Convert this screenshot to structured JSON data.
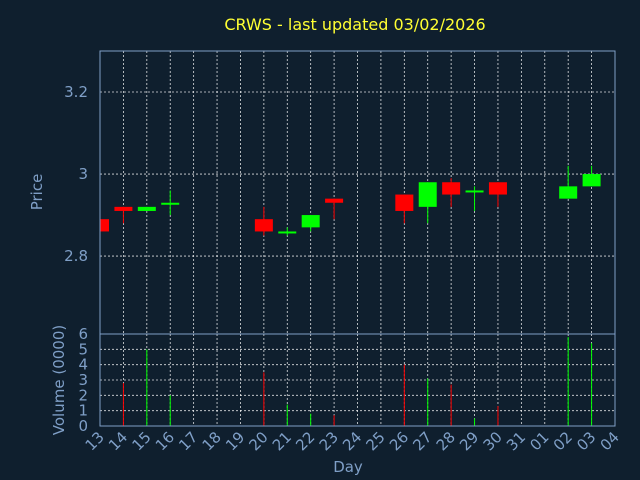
{
  "chart_data": {
    "type": "candlestick",
    "title": "CRWS - last updated 03/02/2026",
    "xlabel": "Day",
    "price_panel": {
      "ylabel": "Price",
      "ylim": [
        2.61,
        3.3
      ],
      "yticks": [
        2.8,
        3.0,
        3.2
      ],
      "ytick_labels": [
        "2.8",
        "3",
        "3.2"
      ]
    },
    "volume_panel": {
      "ylabel": "Volume (0000)",
      "ylim": [
        0,
        6
      ],
      "yticks": [
        0,
        1,
        2,
        3,
        4,
        5,
        6
      ],
      "ytick_labels": [
        "0",
        "1",
        "2",
        "3",
        "4",
        "5",
        "6"
      ]
    },
    "x_tick_labels": [
      "13",
      "14",
      "15",
      "16",
      "17",
      "18",
      "19",
      "20",
      "21",
      "22",
      "23",
      "24",
      "25",
      "26",
      "27",
      "28",
      "29",
      "30",
      "31",
      "01",
      "02",
      "03",
      "04"
    ],
    "grid": true,
    "up_color": "#00ff00",
    "down_color": "#ff0000",
    "candles": [
      {
        "x": 0,
        "open": 2.89,
        "close": 2.86,
        "high": 2.89,
        "low": 2.86,
        "volume": 0
      },
      {
        "x": 1,
        "open": 2.92,
        "close": 2.91,
        "high": 2.92,
        "low": 2.88,
        "volume": 2.8
      },
      {
        "x": 2,
        "open": 2.91,
        "close": 2.92,
        "high": 2.92,
        "low": 2.91,
        "volume": 5.0
      },
      {
        "x": 3,
        "open": 2.93,
        "close": 2.93,
        "high": 2.96,
        "low": 2.9,
        "volume": 2.0
      },
      {
        "x": 7,
        "open": 2.89,
        "close": 2.86,
        "high": 2.92,
        "low": 2.85,
        "volume": 3.5
      },
      {
        "x": 8,
        "open": 2.86,
        "close": 2.86,
        "high": 2.87,
        "low": 2.85,
        "volume": 1.4
      },
      {
        "x": 9,
        "open": 2.87,
        "close": 2.9,
        "high": 2.9,
        "low": 2.86,
        "volume": 0.8
      },
      {
        "x": 10,
        "open": 2.94,
        "close": 2.93,
        "high": 2.94,
        "low": 2.89,
        "volume": 0.7
      },
      {
        "x": 13,
        "open": 2.95,
        "close": 2.91,
        "high": 2.95,
        "low": 2.88,
        "volume": 4.0
      },
      {
        "x": 14,
        "open": 2.92,
        "close": 2.98,
        "high": 2.98,
        "low": 2.88,
        "volume": 3.1
      },
      {
        "x": 15,
        "open": 2.98,
        "close": 2.95,
        "high": 2.99,
        "low": 2.92,
        "volume": 2.7
      },
      {
        "x": 16,
        "open": 2.96,
        "close": 2.96,
        "high": 2.97,
        "low": 2.91,
        "volume": 0.5
      },
      {
        "x": 17,
        "open": 2.98,
        "close": 2.95,
        "high": 2.98,
        "low": 2.92,
        "volume": 1.3
      },
      {
        "x": 20,
        "open": 2.94,
        "close": 2.97,
        "high": 3.02,
        "low": 2.94,
        "volume": 5.8
      },
      {
        "x": 21,
        "open": 2.97,
        "close": 3.0,
        "high": 3.02,
        "low": 2.97,
        "volume": 5.4
      }
    ]
  }
}
